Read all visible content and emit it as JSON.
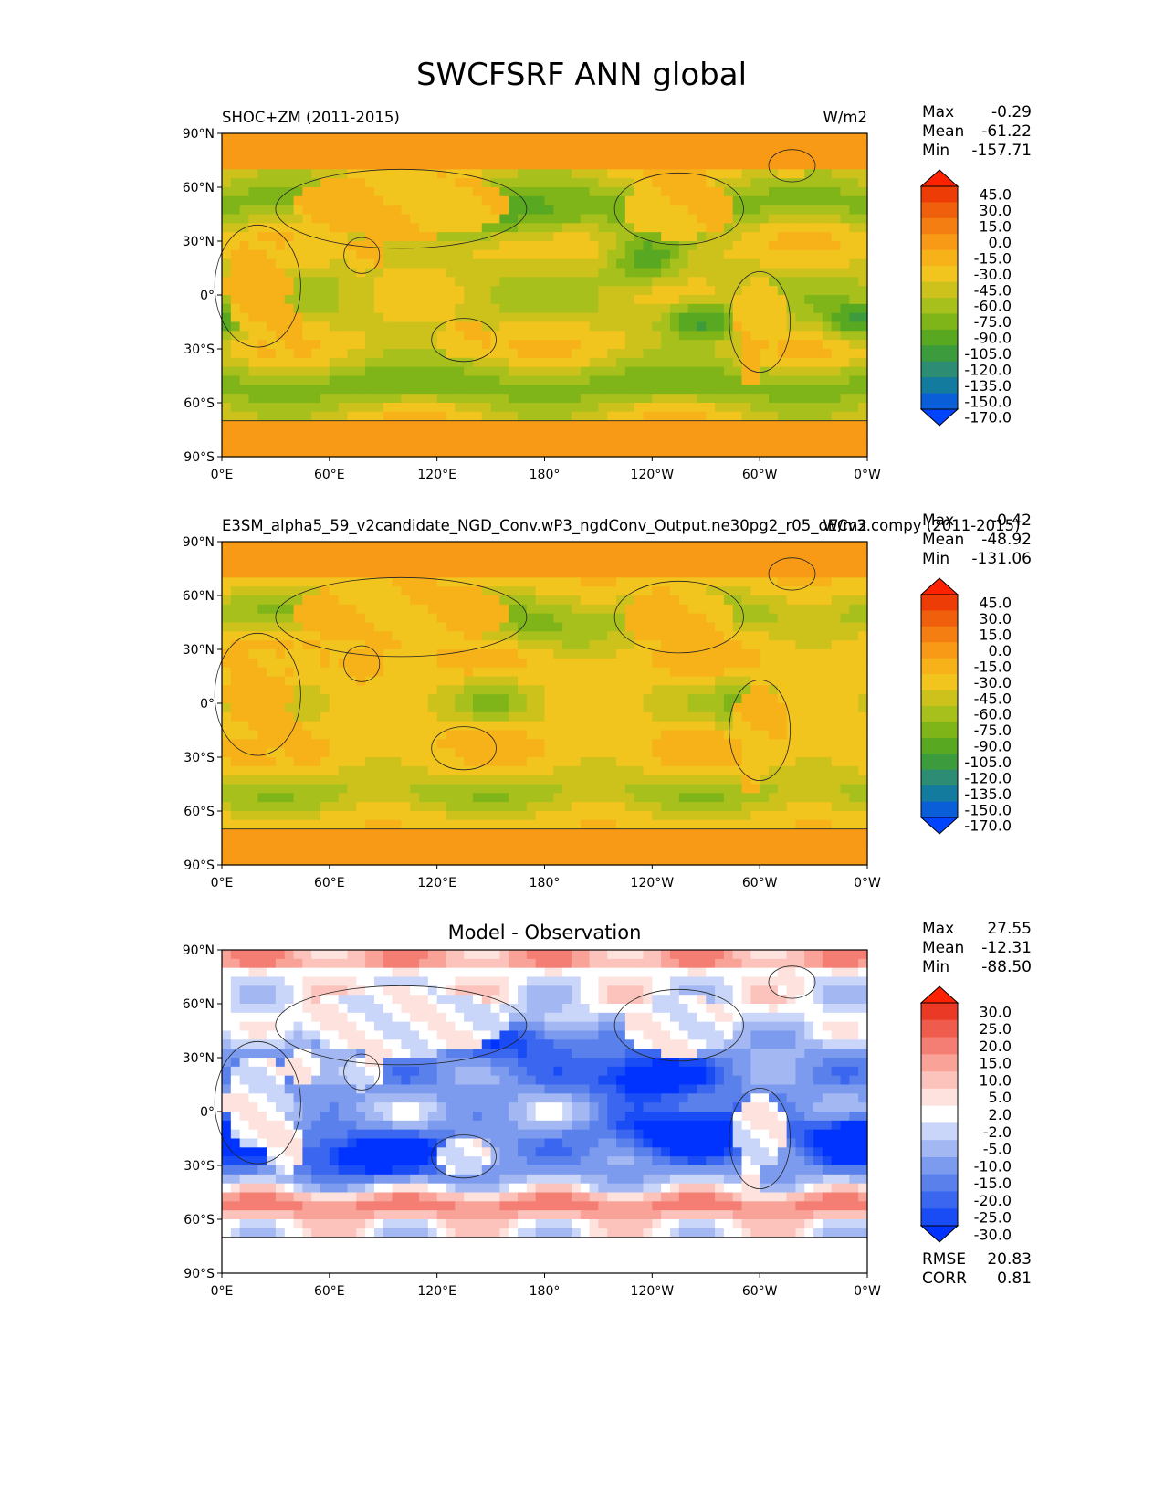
{
  "figure_title": "SWCFSRF ANN global",
  "colors": {
    "map_colormap": [
      "#0044ff",
      "#0a5fd8",
      "#137b9e",
      "#2d8c74",
      "#3c9b3c",
      "#58a822",
      "#7fb519",
      "#a8c01c",
      "#cdc21c",
      "#f2c41e",
      "#f7b21a",
      "#f89a16",
      "#f47e12",
      "#f0600c",
      "#ee3c06",
      "#ff2200"
    ],
    "diff_colormap": [
      "#0033ff",
      "#1a4cf5",
      "#3a66f0",
      "#5a80ec",
      "#7c9aee",
      "#a3b8f3",
      "#c9d6f9",
      "#ffffff",
      "#fde2de",
      "#fbc3bb",
      "#f8a298",
      "#f47e73",
      "#ef5b4c",
      "#ea3a26",
      "#ff2200"
    ],
    "land_mask": "#000000"
  },
  "chart_data": [
    {
      "type": "heatmap",
      "title": "SHOC+ZM (2011-2015)",
      "units": "W/m2",
      "stats": {
        "max_label": "Max",
        "max": "-0.29",
        "mean_label": "Mean",
        "mean": "-61.22",
        "min_label": "Min",
        "min": "-157.71"
      },
      "xticks": [
        "0°E",
        "60°E",
        "120°E",
        "180°",
        "120°W",
        "60°W",
        "0°W"
      ],
      "yticks": [
        "90°N",
        "60°N",
        "30°N",
        "0°",
        "30°S",
        "60°S",
        "90°S"
      ],
      "xlim": [
        0,
        360
      ],
      "ylim": [
        -90,
        90
      ],
      "colorbar_levels": [
        "45.0",
        "30.0",
        "15.0",
        "0.0",
        "-15.0",
        "-30.0",
        "-45.0",
        "-60.0",
        "-75.0",
        "-90.0",
        "-105.0",
        "-120.0",
        "-135.0",
        "-150.0",
        "-170.0"
      ],
      "field": "model"
    },
    {
      "type": "heatmap",
      "title": "E3SM_alpha5_59_v2candidate_NGD_Conv.wP3_ngdConv_Output.ne30pg2_r05_oECv3.compy (2011-2015)",
      "units": "W/m2",
      "stats": {
        "max_label": "Max",
        "max": "-0.42",
        "mean_label": "Mean",
        "mean": "-48.92",
        "min_label": "Min",
        "min": "-131.06"
      },
      "xticks": [
        "0°E",
        "60°E",
        "120°E",
        "180°",
        "120°W",
        "60°W",
        "0°W"
      ],
      "yticks": [
        "90°N",
        "60°N",
        "30°N",
        "0°",
        "30°S",
        "60°S",
        "90°S"
      ],
      "xlim": [
        0,
        360
      ],
      "ylim": [
        -90,
        90
      ],
      "colorbar_levels": [
        "45.0",
        "30.0",
        "15.0",
        "0.0",
        "-15.0",
        "-30.0",
        "-45.0",
        "-60.0",
        "-75.0",
        "-90.0",
        "-105.0",
        "-120.0",
        "-135.0",
        "-150.0",
        "-170.0"
      ],
      "field": "obs"
    },
    {
      "type": "heatmap",
      "title": "Model - Observation",
      "units": "",
      "stats": {
        "max_label": "Max",
        "max": "27.55",
        "mean_label": "Mean",
        "mean": "-12.31",
        "min_label": "Min",
        "min": "-88.50"
      },
      "xticks": [
        "0°E",
        "60°E",
        "120°E",
        "180°",
        "120°W",
        "60°W",
        "0°W"
      ],
      "yticks": [
        "90°N",
        "60°N",
        "30°N",
        "0°",
        "30°S",
        "60°S",
        "90°S"
      ],
      "xlim": [
        0,
        360
      ],
      "ylim": [
        -90,
        90
      ],
      "colorbar_levels": [
        "30.0",
        "25.0",
        "20.0",
        "15.0",
        "10.0",
        "5.0",
        "2.0",
        "-2.0",
        "-5.0",
        "-10.0",
        "-15.0",
        "-20.0",
        "-25.0",
        "-30.0"
      ],
      "field": "diff",
      "metrics": {
        "rmse_label": "RMSE",
        "rmse": "20.83",
        "corr_label": "CORR",
        "corr": "0.81"
      }
    }
  ]
}
